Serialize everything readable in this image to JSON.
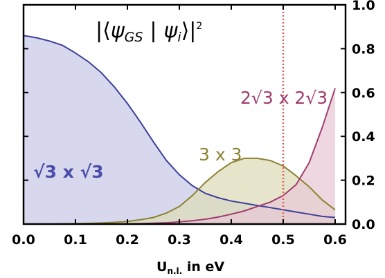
{
  "chart_data": {
    "type": "area",
    "title": "|⟨ψGS | ψi⟩|²",
    "title_parts": {
      "open": "|⟨",
      "psi_gs": "ψ",
      "sub_gs": "GS",
      "sep": "|",
      "psi_i": "ψ",
      "sub_i": "i",
      "close": "⟩|",
      "sup": "2"
    },
    "xlabel": "U",
    "xlabel_sub": "n.l.",
    "xlabel_suffix": " in eV",
    "ylabel": "",
    "xlim": [
      0.0,
      0.62
    ],
    "ylim": [
      0.0,
      1.0
    ],
    "x_ticks": [
      0.0,
      0.1,
      0.2,
      0.3,
      0.4,
      0.5,
      0.6
    ],
    "x_tick_labels": [
      "0.0",
      "0.1",
      "0.2",
      "0.3",
      "0.4",
      "0.5",
      "0.6"
    ],
    "y_ticks": [
      0.0,
      0.2,
      0.4,
      0.6,
      0.8,
      1.0
    ],
    "y_tick_labels": [
      "0.0",
      "0.2",
      "0.4",
      "0.6",
      "0.8",
      "1.0"
    ],
    "y_axis_side": "right",
    "grid": false,
    "vline": {
      "x": 0.5,
      "color": "#e05a5a",
      "style": "dotted"
    },
    "series": [
      {
        "name": "√3 x √3",
        "color": "#3c3f9b",
        "fill": "#c9cbe8",
        "x": [
          0.0,
          0.025,
          0.05,
          0.075,
          0.1,
          0.125,
          0.15,
          0.175,
          0.2,
          0.225,
          0.25,
          0.275,
          0.3,
          0.325,
          0.35,
          0.375,
          0.4,
          0.425,
          0.45,
          0.475,
          0.5,
          0.525,
          0.55,
          0.575,
          0.6
        ],
        "values": [
          0.86,
          0.85,
          0.835,
          0.815,
          0.78,
          0.74,
          0.69,
          0.625,
          0.55,
          0.465,
          0.375,
          0.29,
          0.225,
          0.175,
          0.14,
          0.12,
          0.105,
          0.095,
          0.085,
          0.075,
          0.065,
          0.055,
          0.045,
          0.035,
          0.03
        ]
      },
      {
        "name": "3 x 3",
        "color": "#8c8232",
        "fill": "#dedcb9",
        "x": [
          0.0,
          0.025,
          0.05,
          0.075,
          0.1,
          0.125,
          0.15,
          0.175,
          0.2,
          0.225,
          0.25,
          0.275,
          0.3,
          0.325,
          0.35,
          0.375,
          0.4,
          0.425,
          0.45,
          0.475,
          0.5,
          0.525,
          0.55,
          0.575,
          0.6
        ],
        "values": [
          0.0,
          0.0,
          0.0,
          0.001,
          0.002,
          0.003,
          0.005,
          0.008,
          0.012,
          0.02,
          0.03,
          0.05,
          0.08,
          0.13,
          0.19,
          0.24,
          0.28,
          0.3,
          0.3,
          0.29,
          0.265,
          0.22,
          0.17,
          0.11,
          0.065
        ]
      },
      {
        "name": "2√3 x 2√3",
        "color": "#a03c6e",
        "fill": "#e8c9d6",
        "x": [
          0.0,
          0.025,
          0.05,
          0.075,
          0.1,
          0.125,
          0.15,
          0.175,
          0.2,
          0.225,
          0.25,
          0.275,
          0.3,
          0.325,
          0.35,
          0.375,
          0.4,
          0.425,
          0.45,
          0.475,
          0.5,
          0.525,
          0.55,
          0.575,
          0.6
        ],
        "values": [
          0.0,
          0.0,
          0.0,
          0.0,
          0.0,
          0.0,
          0.0,
          0.0,
          0.001,
          0.002,
          0.004,
          0.006,
          0.01,
          0.015,
          0.022,
          0.032,
          0.045,
          0.06,
          0.08,
          0.1,
          0.13,
          0.18,
          0.28,
          0.44,
          0.62
        ]
      }
    ]
  }
}
